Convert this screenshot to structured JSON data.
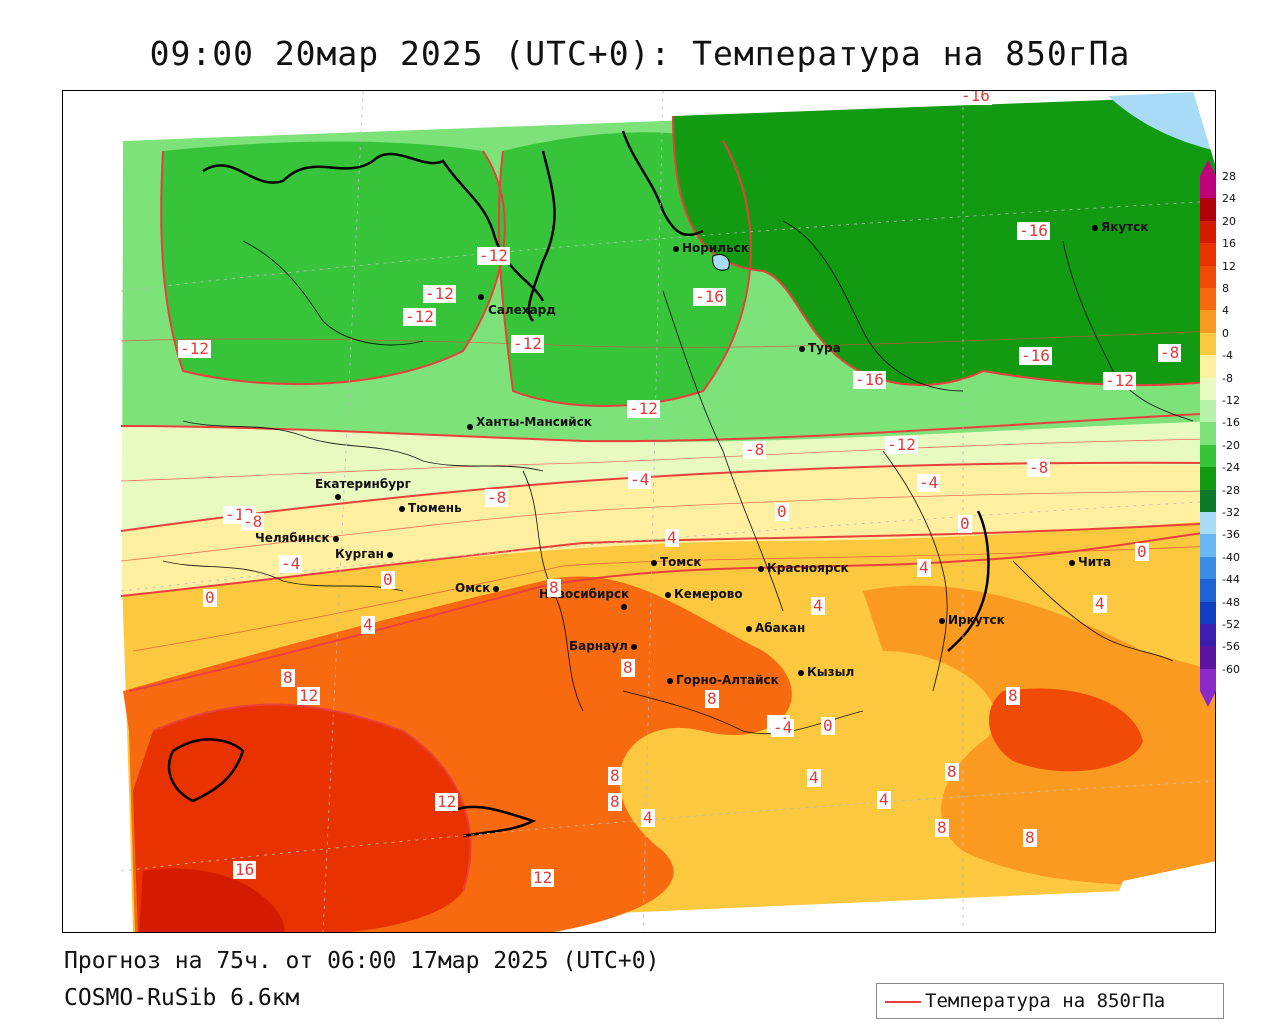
{
  "title": "09:00 20мар 2025 (UTC+0): Температура на 850гПа",
  "footer": {
    "forecast": "Прогноз на 75ч. от 06:00 17мар 2025 (UTC+0)",
    "model": "COSMO-RuSib 6.6км"
  },
  "legend": {
    "label": "Температура на 850гПа",
    "line_color": "#e8413c"
  },
  "colorbar": {
    "ticks": [
      "28",
      "24",
      "20",
      "16",
      "12",
      "8",
      "4",
      "0",
      "-4",
      "-8",
      "-12",
      "-16",
      "-20",
      "-24",
      "-28",
      "-32",
      "-36",
      "-40",
      "-44",
      "-48",
      "-52",
      "-56",
      "-60"
    ],
    "colors": [
      "#c0007a",
      "#b0000a",
      "#d41a00",
      "#e83200",
      "#f04c08",
      "#f86a10",
      "#fa9a20",
      "#fbc840",
      "#fef0a0",
      "#e8fac0",
      "#b8f2a8",
      "#7ee27a",
      "#38c43a",
      "#129a12",
      "#0a7a2a",
      "#a8dcf6",
      "#6ab8f2",
      "#3a8ee8",
      "#1e64d8",
      "#1040c0",
      "#3a1eb0",
      "#5a14a0",
      "#8a2ac8"
    ]
  },
  "cities": [
    {
      "name": "Норильск"
    },
    {
      "name": "Якутск"
    },
    {
      "name": "Салехард"
    },
    {
      "name": "Тура"
    },
    {
      "name": "Ханты-Мансийск"
    },
    {
      "name": "Екатеринбург"
    },
    {
      "name": "Тюмень"
    },
    {
      "name": "Челябинск"
    },
    {
      "name": "Курган"
    },
    {
      "name": "Омск"
    },
    {
      "name": "Новосибирск"
    },
    {
      "name": "Томск"
    },
    {
      "name": "Кемерово"
    },
    {
      "name": "Красноярск"
    },
    {
      "name": "Барнаул"
    },
    {
      "name": "Абакан"
    },
    {
      "name": "Горно-Алтайск"
    },
    {
      "name": "Кызыл"
    },
    {
      "name": "Иркутск"
    },
    {
      "name": "Чита"
    }
  ],
  "isoline_labels": [
    "-16",
    "-16",
    "-16",
    "-16",
    "-16",
    "-12",
    "-12",
    "-12",
    "-12",
    "-12",
    "-12",
    "-12",
    "-12",
    "-12",
    "-8",
    "-8",
    "-8",
    "-8",
    "-8",
    "-4",
    "-4",
    "-4",
    "-4",
    "0",
    "0",
    "0",
    "0",
    "0",
    "4",
    "4",
    "4",
    "4",
    "4",
    "4",
    "4",
    "8",
    "8",
    "8",
    "8",
    "8",
    "8",
    "8",
    "8",
    "8",
    "8",
    "12",
    "12",
    "12",
    "16",
    "-4",
    "0",
    "4"
  ]
}
